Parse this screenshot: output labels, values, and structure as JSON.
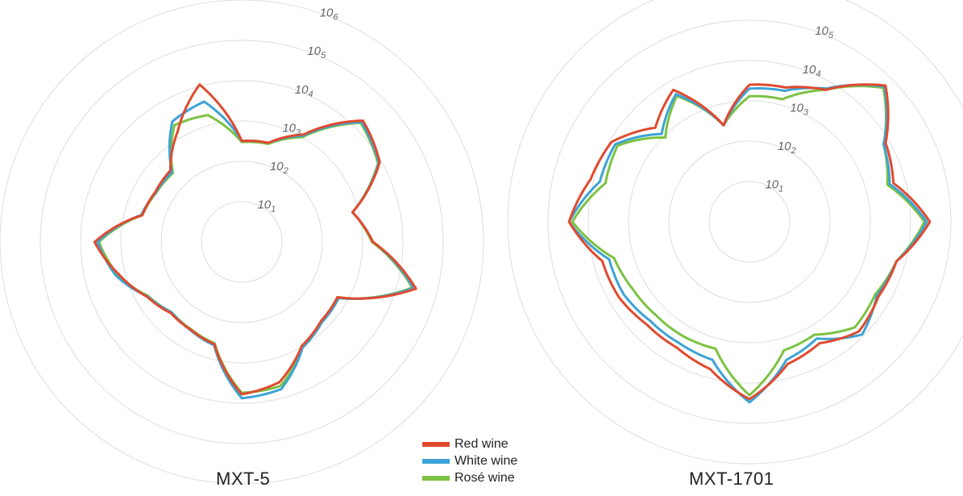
{
  "chart_data": [
    {
      "type": "radar",
      "title": "MXT-5",
      "scale": "log",
      "rlim": [
        1,
        1000000
      ],
      "ticks": [
        "10^1",
        "10^2",
        "10^3",
        "10^4",
        "10^5",
        "10^6"
      ],
      "tick_exponents": [
        1,
        2,
        3,
        4,
        5,
        6
      ],
      "angular_grid": false,
      "angles_deg": [
        0,
        15,
        30,
        45,
        60,
        75,
        90,
        105,
        120,
        135,
        150,
        165,
        180,
        195,
        210,
        225,
        240,
        255,
        270,
        285,
        300,
        315,
        330,
        345
      ],
      "series": [
        {
          "name": "Red wine",
          "color": "#e04a2f",
          "values": [
            320,
            350,
            1200,
            18000,
            9000,
            700,
            1800,
            30000,
            550,
            600,
            950,
            4000,
            6000,
            420,
            330,
            310,
            520,
            1400,
            4500,
            360,
            300,
            320,
            1500,
            11000
          ]
        },
        {
          "name": "White wine",
          "color": "#3da3d6",
          "values": [
            320,
            350,
            1100,
            16000,
            8500,
            700,
            1800,
            26000,
            600,
            650,
            1050,
            6000,
            7500,
            450,
            340,
            290,
            500,
            1700,
            3800,
            380,
            290,
            280,
            2800,
            4000
          ]
        },
        {
          "name": "Rosé wine",
          "color": "#7cc242",
          "values": [
            300,
            330,
            1000,
            15000,
            8000,
            700,
            1700,
            24000,
            600,
            650,
            1050,
            5000,
            5500,
            400,
            320,
            290,
            480,
            1500,
            3500,
            360,
            280,
            260,
            2200,
            1800
          ]
        }
      ]
    },
    {
      "type": "radar",
      "title": "MXT-1701",
      "scale": "log",
      "rlim": [
        1,
        1000000
      ],
      "ticks": [
        "10^1",
        "10^2",
        "10^3",
        "10^4",
        "10^5",
        "10^6"
      ],
      "tick_exponents": [
        1,
        2,
        3,
        4,
        5,
        6
      ],
      "angular_grid": false,
      "angles_deg": [
        0,
        15,
        30,
        45,
        60,
        75,
        90,
        105,
        120,
        135,
        150,
        165,
        180,
        195,
        210,
        225,
        240,
        255,
        270,
        285,
        300,
        315,
        330,
        345
      ],
      "series": [
        {
          "name": "Red wine",
          "color": "#e04a2f",
          "values": [
            2500,
            2800,
            6000,
            60000,
            8000,
            5000,
            30000,
            6000,
            5000,
            7000,
            3000,
            4500,
            25000,
            6000,
            4000,
            4000,
            5500,
            6000,
            30000,
            12000,
            9000,
            2000,
            6000,
            300
          ]
        },
        {
          "name": "White wine",
          "color": "#3da3d6",
          "values": [
            2000,
            2300,
            6500,
            55000,
            7000,
            4000,
            25000,
            6000,
            4500,
            9000,
            2200,
            3500,
            30000,
            3500,
            3000,
            3000,
            4000,
            4000,
            30000,
            7000,
            7000,
            1200,
            4500,
            300
          ]
        },
        {
          "name": "Rosé wine",
          "color": "#7cc242",
          "values": [
            1300,
            1400,
            6000,
            50000,
            7000,
            3500,
            22000,
            6000,
            4000,
            5000,
            1700,
            2000,
            20000,
            1800,
            1900,
            1900,
            2200,
            3000,
            25000,
            5000,
            6000,
            900,
            4000,
            300
          ]
        }
      ]
    }
  ],
  "legend": [
    {
      "label": "Red wine",
      "color": "#e04a2f"
    },
    {
      "label": "White wine",
      "color": "#3da3d6"
    },
    {
      "label": "Rosé wine",
      "color": "#7cc242"
    }
  ]
}
